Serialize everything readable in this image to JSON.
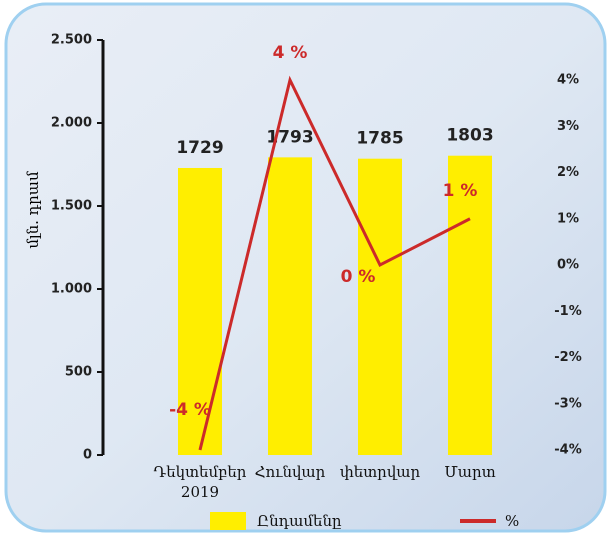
{
  "chart_data": {
    "type": "bar-line",
    "categories": [
      "Դեկտեմբեր 2019",
      "Հունվար",
      "փետրվար",
      "Մարտ"
    ],
    "ylabel": "մլն. դրամ",
    "ylim": [
      0,
      2500
    ],
    "yticks": [
      0,
      500,
      {
        "value": 1000,
        "label": "1.000"
      },
      {
        "value": 1500,
        "label": "1.500"
      },
      {
        "value": 2000,
        "label": "2.000"
      },
      {
        "value": 2500,
        "label": "2.500"
      }
    ],
    "y2lim": [
      -4,
      4
    ],
    "y2ticks": [
      {
        "value": -4,
        "label": "-4%"
      },
      {
        "value": -3,
        "label": "-3%"
      },
      {
        "value": -2,
        "label": "-2%"
      },
      {
        "value": -1,
        "label": "-1%"
      },
      {
        "value": 0,
        "label": "0%"
      },
      {
        "value": 1,
        "label": "1%"
      },
      {
        "value": 2,
        "label": "2%"
      },
      {
        "value": 3,
        "label": "3%"
      },
      {
        "value": 4,
        "label": "4%"
      }
    ],
    "series": [
      {
        "name": "Ընդամենը",
        "type": "bar",
        "color": "#ffee00",
        "values": [
          1729,
          1793,
          1785,
          1803
        ]
      },
      {
        "name": "%",
        "type": "line",
        "axis": "y2",
        "color": "#cc2a2a",
        "values": [
          -4,
          4,
          0,
          1
        ],
        "value_labels": [
          "-4 %",
          "4 %",
          "0 %",
          "1 %"
        ]
      }
    ]
  }
}
